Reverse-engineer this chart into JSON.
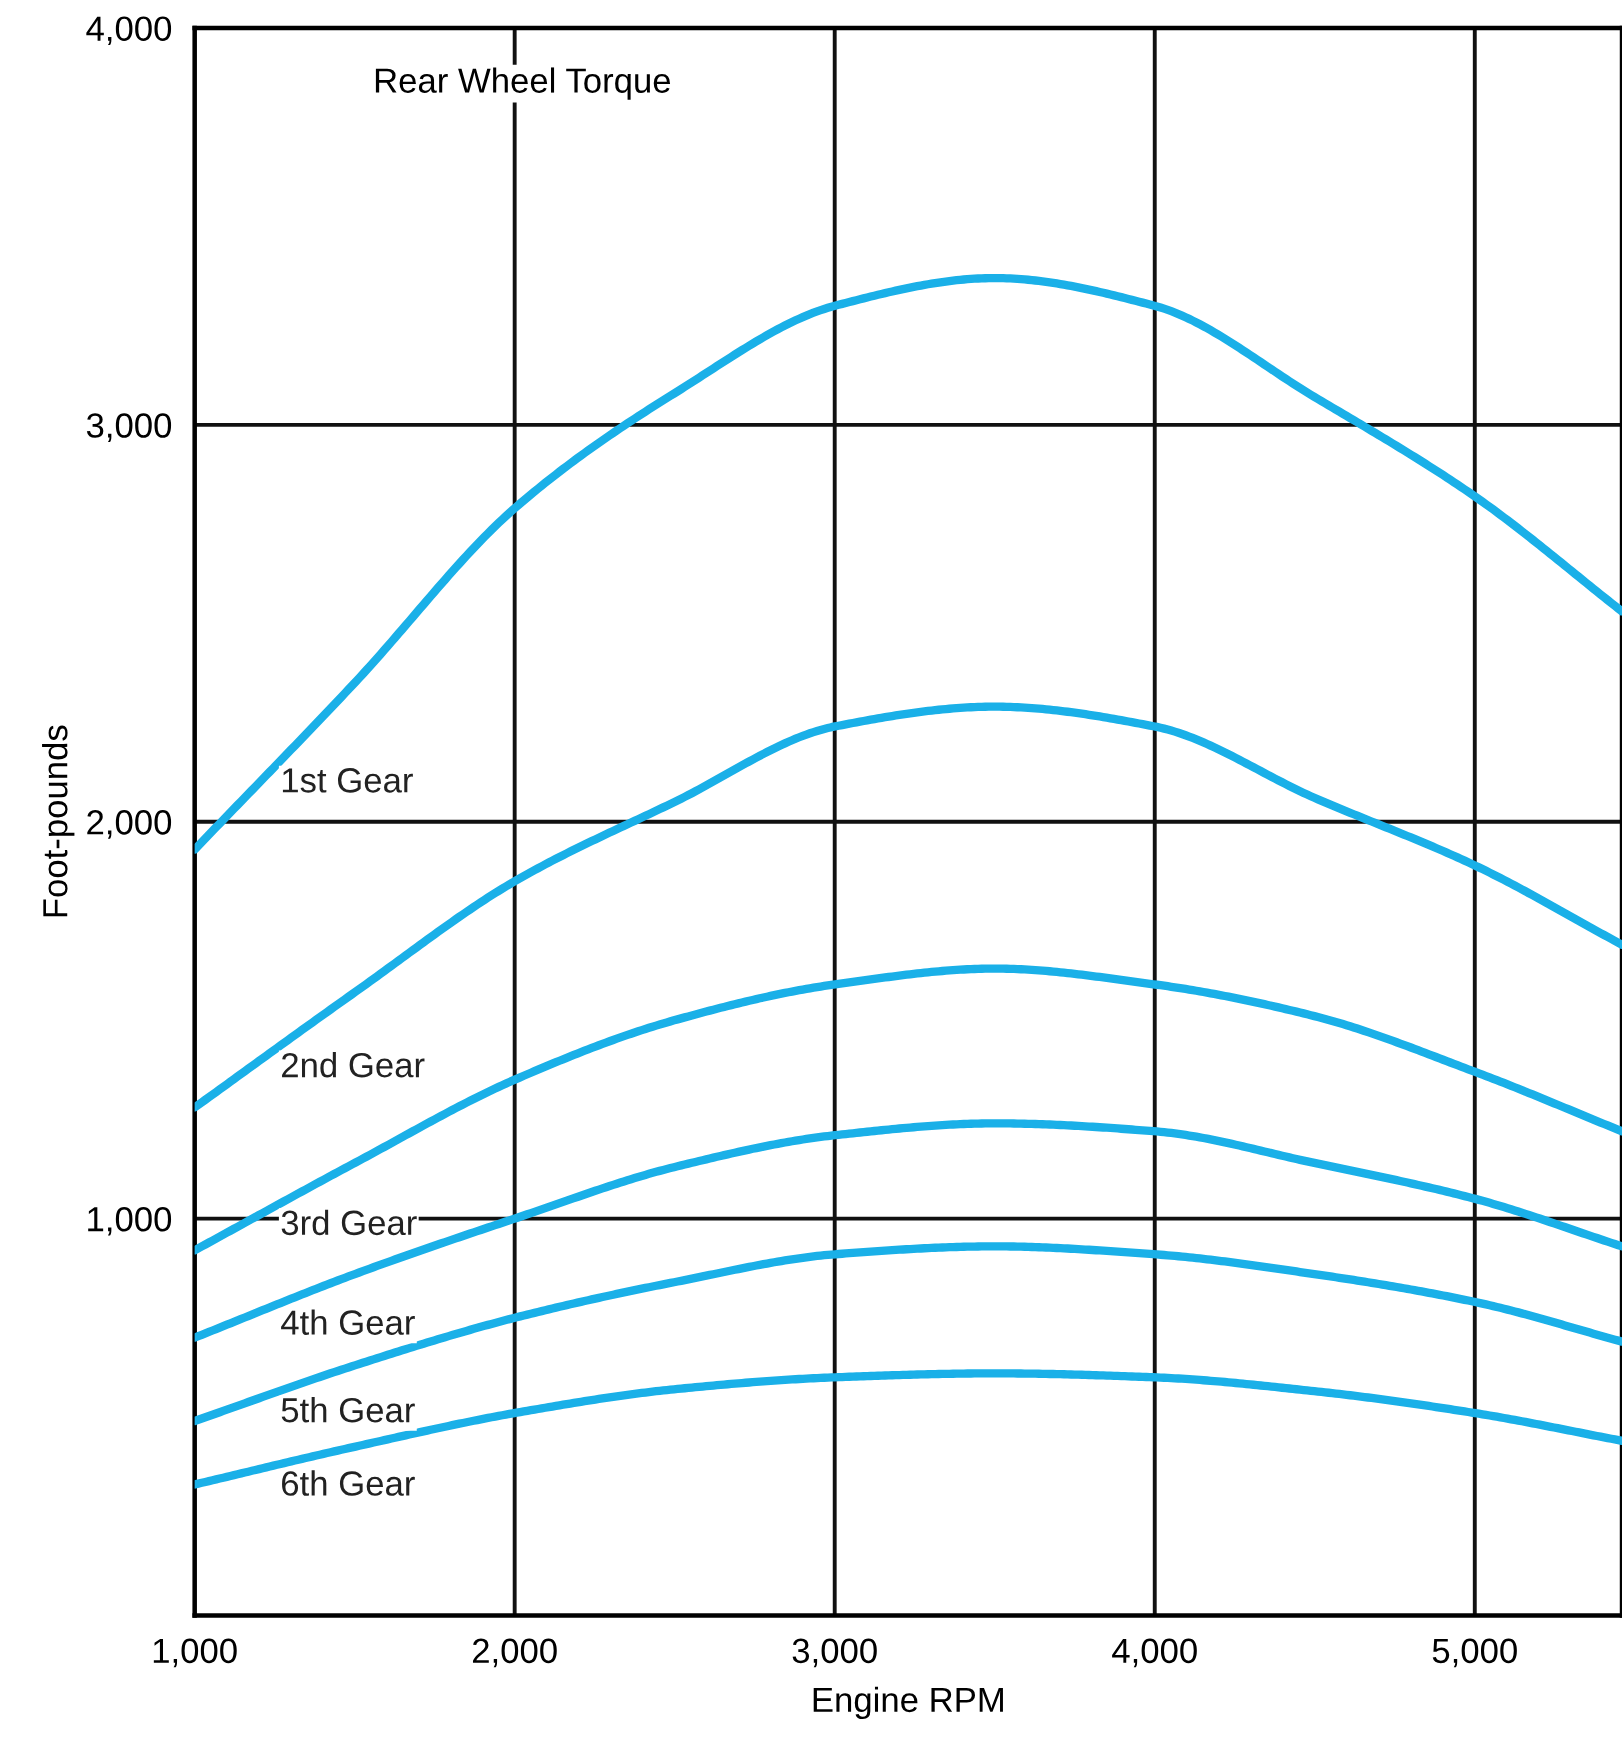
{
  "chart_data": {
    "type": "line",
    "title": "Rear Wheel Torque",
    "xlabel": "Engine RPM",
    "ylabel": "Foot-pounds",
    "x": [
      1000,
      1500,
      2000,
      2500,
      3000,
      3500,
      4000,
      4500,
      5000,
      5460
    ],
    "series": [
      {
        "name": "1st Gear",
        "color": "#1ab0e8",
        "values": [
          1930,
          2350,
          2790,
          3080,
          3300,
          3370,
          3300,
          3070,
          2820,
          2530
        ]
      },
      {
        "name": "2nd Gear",
        "color": "#1ab0e8",
        "values": [
          1280,
          1570,
          1850,
          2050,
          2240,
          2290,
          2240,
          2060,
          1890,
          1690
        ]
      },
      {
        "name": "3rd Gear",
        "color": "#1ab0e8",
        "values": [
          920,
          1140,
          1350,
          1500,
          1590,
          1630,
          1590,
          1510,
          1370,
          1220
        ]
      },
      {
        "name": "4th Gear",
        "color": "#1ab0e8",
        "values": [
          700,
          860,
          1000,
          1130,
          1210,
          1240,
          1220,
          1140,
          1050,
          930
        ]
      },
      {
        "name": "5th Gear",
        "color": "#1ab0e8",
        "values": [
          490,
          630,
          750,
          840,
          910,
          930,
          910,
          860,
          790,
          690
        ]
      },
      {
        "name": "6th Gear",
        "color": "#1ab0e8",
        "values": [
          330,
          425,
          510,
          570,
          600,
          610,
          600,
          565,
          510,
          440
        ]
      }
    ],
    "xlim": [
      1000,
      5460
    ],
    "ylim": [
      0,
      4000
    ],
    "xticks": [
      {
        "value": 1000,
        "label": "1,000"
      },
      {
        "value": 2000,
        "label": "2,000"
      },
      {
        "value": 3000,
        "label": "3,000"
      },
      {
        "value": 4000,
        "label": "4,000"
      },
      {
        "value": 5000,
        "label": "5,000"
      }
    ],
    "yticks": [
      {
        "value": 1000,
        "label": "1,000"
      },
      {
        "value": 2000,
        "label": "2,000"
      },
      {
        "value": 3000,
        "label": "3,000"
      },
      {
        "value": 4000,
        "label": "4,000"
      }
    ],
    "grid": true,
    "legend": false,
    "marker": "none",
    "line_style": "solid"
  }
}
